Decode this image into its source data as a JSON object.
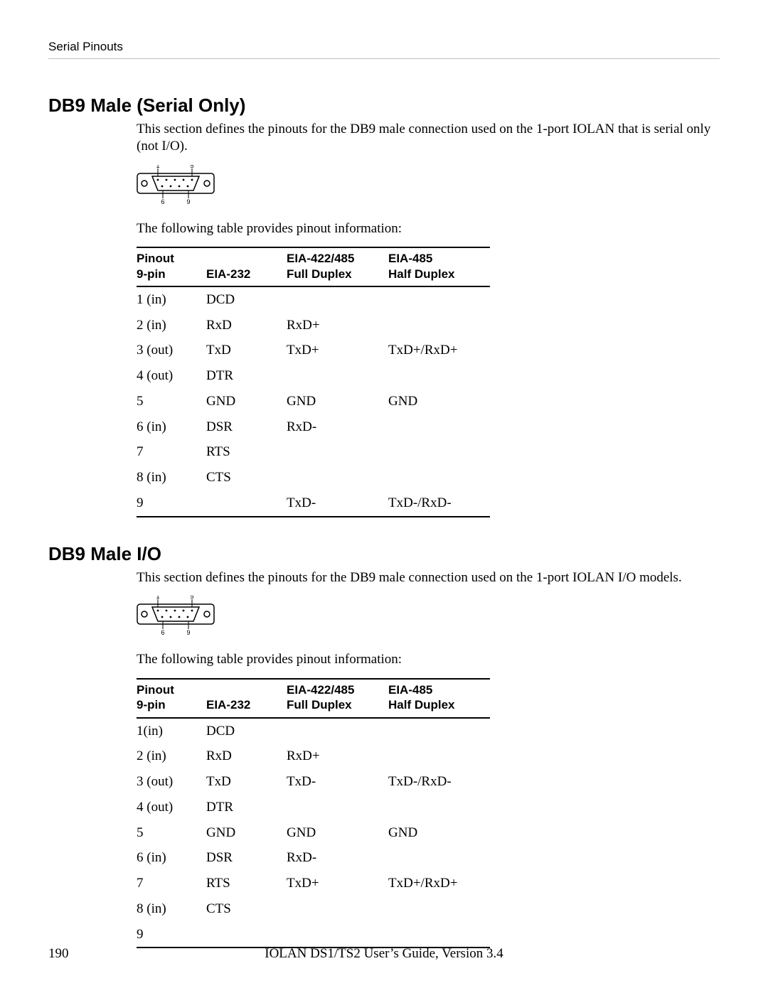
{
  "runningHead": "Serial Pinouts",
  "footer": {
    "pageNumber": "190",
    "title": "IOLAN DS1/TS2 User’s Guide, Version 3.4"
  },
  "connector": {
    "topLabels": [
      "1",
      "5"
    ],
    "bottomLabels": [
      "6",
      "9"
    ]
  },
  "tableHeaders": {
    "pin": "Pinout\n9-pin",
    "eia232": "EIA-232",
    "full": "EIA-422/485\nFull Duplex",
    "half": "EIA-485\nHalf Duplex"
  },
  "sections": [
    {
      "heading": "DB9 Male (Serial Only)",
      "intro": "This section defines the pinouts for the DB9 male connection used on the 1-port IOLAN that is serial only (not I/O).",
      "tableIntro": "The following table provides pinout information:",
      "rows": [
        {
          "pin": "1 (in)",
          "eia232": "DCD",
          "full": "",
          "half": ""
        },
        {
          "pin": "2 (in)",
          "eia232": "RxD",
          "full": "RxD+",
          "half": ""
        },
        {
          "pin": "3 (out)",
          "eia232": "TxD",
          "full": "TxD+",
          "half": "TxD+/RxD+"
        },
        {
          "pin": "4 (out)",
          "eia232": "DTR",
          "full": "",
          "half": ""
        },
        {
          "pin": "5",
          "eia232": "GND",
          "full": "GND",
          "half": "GND"
        },
        {
          "pin": "6 (in)",
          "eia232": "DSR",
          "full": "RxD-",
          "half": ""
        },
        {
          "pin": "7",
          "eia232": "RTS",
          "full": "",
          "half": ""
        },
        {
          "pin": "8 (in)",
          "eia232": "CTS",
          "full": "",
          "half": ""
        },
        {
          "pin": "9",
          "eia232": "",
          "full": "TxD-",
          "half": "TxD-/RxD-"
        }
      ]
    },
    {
      "heading": "DB9 Male I/O",
      "intro": "This section defines the pinouts for the DB9 male connection used on the 1-port IOLAN I/O models.",
      "tableIntro": "The following table provides pinout information:",
      "rows": [
        {
          "pin": "1(in)",
          "eia232": "DCD",
          "full": "",
          "half": ""
        },
        {
          "pin": "2 (in)",
          "eia232": "RxD",
          "full": "RxD+",
          "half": ""
        },
        {
          "pin": "3 (out)",
          "eia232": "TxD",
          "full": "TxD-",
          "half": "TxD-/RxD-"
        },
        {
          "pin": "4 (out)",
          "eia232": "DTR",
          "full": "",
          "half": ""
        },
        {
          "pin": "5",
          "eia232": "GND",
          "full": "GND",
          "half": "GND"
        },
        {
          "pin": "6 (in)",
          "eia232": "DSR",
          "full": "RxD-",
          "half": ""
        },
        {
          "pin": "7",
          "eia232": "RTS",
          "full": "TxD+",
          "half": "TxD+/RxD+"
        },
        {
          "pin": "8 (in)",
          "eia232": "CTS",
          "full": "",
          "half": ""
        },
        {
          "pin": "9",
          "eia232": "",
          "full": "",
          "half": ""
        }
      ]
    }
  ]
}
